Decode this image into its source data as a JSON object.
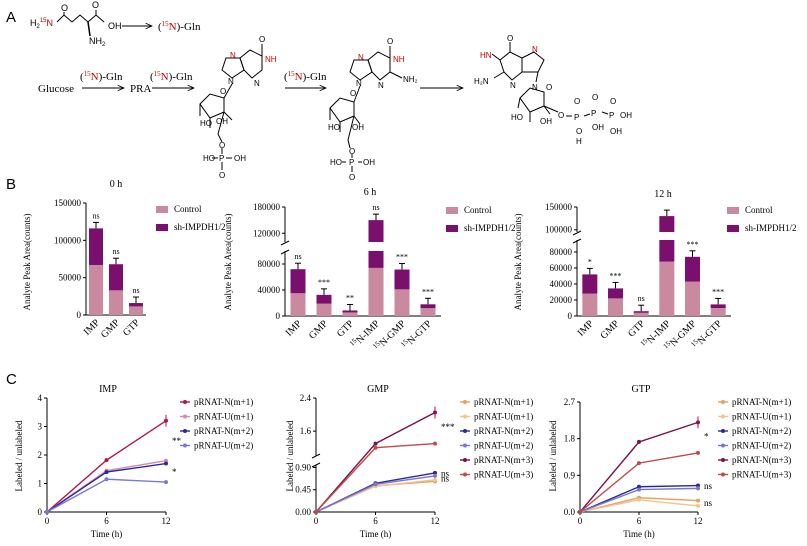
{
  "panel_labels": {
    "a": "A",
    "b": "B",
    "c": "C"
  },
  "colors": {
    "control": "#c98aa0",
    "sh": "#7a0f6e",
    "red": "#c00000",
    "pN1": "#b5124a",
    "pU1": "#d88aa6",
    "pN2": "#2a2a9a",
    "pU2": "#7a78d6",
    "pN3": "#7a1050",
    "pU3": "#c04a4a",
    "orange1": "#e8a060",
    "orange2": "#f2c48a"
  },
  "panel_a": {
    "gln_formula": {
      "h": "H",
      "two": "2",
      "sup15": "15",
      "n": "N"
    },
    "gln_nh2": "NH",
    "gln_nh2_sub": "2",
    "gln_oh": "OH",
    "gln_o": "O",
    "label15n": {
      "open": "(",
      "sup": "15",
      "n": "N",
      "close": ")-Gln"
    },
    "glucose": "Glucose",
    "pra": "PRA",
    "atoms": {
      "N": "N",
      "NH": "NH",
      "HN": "HN",
      "O": "O",
      "OH": "OH",
      "HO": "HO",
      "H2N": "H₂N",
      "NH2": "NH₂",
      "P": "P",
      "H": "H"
    }
  },
  "chart_data": [
    {
      "type": "bar",
      "stacked": true,
      "title": "0 h",
      "categories": [
        "IMP",
        "GMP",
        "GTP"
      ],
      "series": [
        {
          "name": "Control",
          "values": [
            67000,
            33000,
            11500
          ]
        },
        {
          "name": "sh-IMPDH1/2",
          "values": [
            49000,
            35000,
            4500
          ]
        }
      ],
      "ylabel": "Analyte Peak Area(counts)",
      "ylim": [
        0,
        150000
      ],
      "yticks": [
        "0",
        "50000",
        "100000",
        "150000"
      ],
      "significance": [
        "ns",
        "ns",
        "ns"
      ],
      "legend": [
        "Control",
        "sh-IMPDH1/2"
      ]
    },
    {
      "type": "bar",
      "stacked": true,
      "broken_axis": true,
      "title": "6 h",
      "categories": [
        "IMP",
        "GMP",
        "GTP",
        "15N-IMP",
        "15N-GMP",
        "15N-GTP"
      ],
      "category_labels": [
        {
          "pre": "",
          "main": "IMP"
        },
        {
          "pre": "",
          "main": "GMP"
        },
        {
          "pre": "",
          "main": "GTP"
        },
        {
          "pre": "15",
          "main": "N-IMP"
        },
        {
          "pre": "15",
          "main": "N-GMP"
        },
        {
          "pre": "15",
          "main": "N-GTP"
        }
      ],
      "series": [
        {
          "name": "Control",
          "values": [
            35000,
            19000,
            5500,
            74000,
            41000,
            12000
          ]
        },
        {
          "name": "sh-IMPDH1/2",
          "values": [
            37000,
            13500,
            3000,
            76000,
            30500,
            6000
          ]
        }
      ],
      "ylabel": "Analyte Peak Area(counts)",
      "ylim_lower": [
        0,
        100000
      ],
      "ylim_upper": [
        100000,
        180000
      ],
      "yticks_lower": [
        "0",
        "40000",
        "80000"
      ],
      "yticks_upper": [
        "120000",
        "180000"
      ],
      "significance": [
        "ns",
        "***",
        "**",
        "ns",
        "***",
        "***"
      ],
      "legend": [
        "Control",
        "sh-IMPDH1/2"
      ]
    },
    {
      "type": "bar",
      "stacked": true,
      "broken_axis": true,
      "title": "12 h",
      "categories": [
        "IMP",
        "GMP",
        "GTP",
        "15N-IMP",
        "15N-GMP",
        "15N-GTP"
      ],
      "category_labels": [
        {
          "pre": "",
          "main": "IMP"
        },
        {
          "pre": "",
          "main": "GMP"
        },
        {
          "pre": "",
          "main": "GTP"
        },
        {
          "pre": "15",
          "main": "N-IMP"
        },
        {
          "pre": "15",
          "main": "N-GMP"
        },
        {
          "pre": "15",
          "main": "N-GTP"
        }
      ],
      "series": [
        {
          "name": "Control",
          "values": [
            28000,
            22000,
            4000,
            68000,
            43000,
            10000
          ]
        },
        {
          "name": "sh-IMPDH1/2",
          "values": [
            24000,
            12500,
            2000,
            62000,
            31000,
            4500
          ]
        }
      ],
      "ylabel": "Analyte Peak Area(counts)",
      "ylim_lower": [
        0,
        95000
      ],
      "ylim_upper": [
        95000,
        150000
      ],
      "yticks_lower": [
        "0",
        "20000",
        "40000",
        "60000",
        "80000"
      ],
      "yticks_upper": [
        "100000",
        "150000"
      ],
      "significance": [
        "*",
        "***",
        "ns",
        "",
        "***",
        "***"
      ],
      "legend": [
        "Control",
        "sh-IMPDH1/2"
      ]
    },
    {
      "type": "line",
      "title": "IMP",
      "x": [
        0,
        6,
        12
      ],
      "series": [
        {
          "name": "pRNAT-N(m+1)",
          "values": [
            0,
            1.82,
            3.2
          ]
        },
        {
          "name": "pRNAT-U(m+1)",
          "values": [
            0,
            1.45,
            1.8
          ]
        },
        {
          "name": "pRNAT-N(m+2)",
          "values": [
            0,
            1.4,
            1.7
          ]
        },
        {
          "name": "pRNAT-U(m+2)",
          "values": [
            0,
            1.15,
            1.05
          ]
        }
      ],
      "xlabel": "Time (h)",
      "ylabel": "Labeled / unlabeled",
      "ylim": [
        0,
        4
      ],
      "xticks": [
        "0",
        "6",
        "12"
      ],
      "yticks": [
        "0",
        "1",
        "2",
        "3",
        "4"
      ],
      "significance": [
        "**",
        "*"
      ]
    },
    {
      "type": "line",
      "broken_axis": true,
      "title": "GMP",
      "x": [
        0,
        6,
        12
      ],
      "series": [
        {
          "name": "pRNAT-N(m+1)",
          "values": [
            0,
            0.53,
            0.62
          ]
        },
        {
          "name": "pRNAT-U(m+1)",
          "values": [
            0,
            0.52,
            0.65
          ]
        },
        {
          "name": "pRNAT-N(m+2)",
          "values": [
            0,
            0.58,
            0.79
          ]
        },
        {
          "name": "pRNAT-U(m+2)",
          "values": [
            0,
            0.56,
            0.73
          ]
        },
        {
          "name": "pRNAT-N(m+3)",
          "values": [
            0,
            1.3,
            2.05
          ]
        },
        {
          "name": "pRNAT-U(m+3)",
          "values": [
            0,
            1.2,
            1.3
          ]
        }
      ],
      "xlabel": "Time (h)",
      "ylabel": "Labeled / unlabeled",
      "xticks": [
        "0",
        "6",
        "12"
      ],
      "yticks_lower": [
        "0.00",
        "0.45",
        "0.90"
      ],
      "yticks_upper": [
        "1.6",
        "2.4"
      ],
      "significance": [
        "***",
        "ns",
        "ns"
      ]
    },
    {
      "type": "line",
      "title": "GTP",
      "x": [
        0,
        6,
        12
      ],
      "series": [
        {
          "name": "pRNAT-N(m+1)",
          "values": [
            0,
            0.35,
            0.28
          ]
        },
        {
          "name": "pRNAT-U(m+1)",
          "values": [
            0,
            0.3,
            0.15
          ]
        },
        {
          "name": "pRNAT-N(m+2)",
          "values": [
            0,
            0.62,
            0.65
          ]
        },
        {
          "name": "pRNAT-U(m+2)",
          "values": [
            0,
            0.55,
            0.58
          ]
        },
        {
          "name": "pRNAT-N(m+3)",
          "values": [
            0,
            1.72,
            2.2
          ]
        },
        {
          "name": "pRNAT-U(m+3)",
          "values": [
            0,
            1.2,
            1.45
          ]
        }
      ],
      "xlabel": "Time (h)",
      "ylabel": "Labeled / unlabeled",
      "ylim": [
        0,
        2.7
      ],
      "xticks": [
        "0",
        "6",
        "12"
      ],
      "yticks": [
        "0.0",
        "0.9",
        "1.8",
        "2.7"
      ],
      "significance": [
        "*",
        "ns",
        "ns"
      ]
    }
  ]
}
